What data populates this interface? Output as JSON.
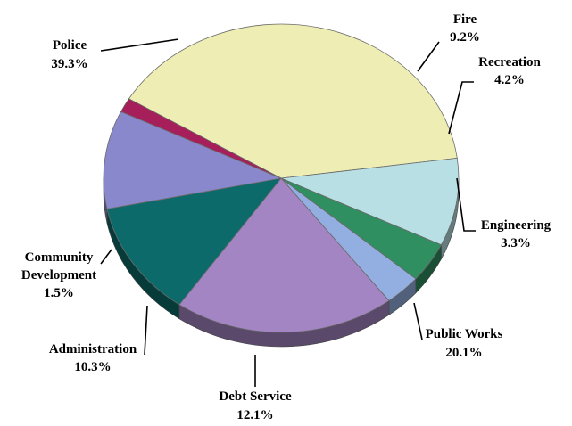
{
  "chart_data": {
    "type": "pie",
    "title": "",
    "slices": [
      {
        "label": "Police",
        "pct_text": "39.3%",
        "value": 39.3,
        "color": "#eeeeb4"
      },
      {
        "label": "Fire",
        "pct_text": "9.2%",
        "value": 9.2,
        "color": "#b8e0e4"
      },
      {
        "label": "Recreation",
        "pct_text": "4.2%",
        "value": 4.2,
        "color": "#2f8f60"
      },
      {
        "label": "Engineering",
        "pct_text": "3.3%",
        "value": 3.3,
        "color": "#93aee0"
      },
      {
        "label": "Public Works",
        "pct_text": "20.1%",
        "value": 20.1,
        "color": "#a385c3"
      },
      {
        "label": "Debt Service",
        "pct_text": "12.1%",
        "value": 12.1,
        "color": "#0c6b6a"
      },
      {
        "label": "Administration",
        "pct_text": "10.3%",
        "value": 10.3,
        "color": "#8a88cc"
      },
      {
        "label": "Community Development",
        "label_lines": [
          "Community",
          "Development"
        ],
        "pct_text": "1.5%",
        "value": 1.5,
        "color": "#a61e5a"
      }
    ]
  }
}
